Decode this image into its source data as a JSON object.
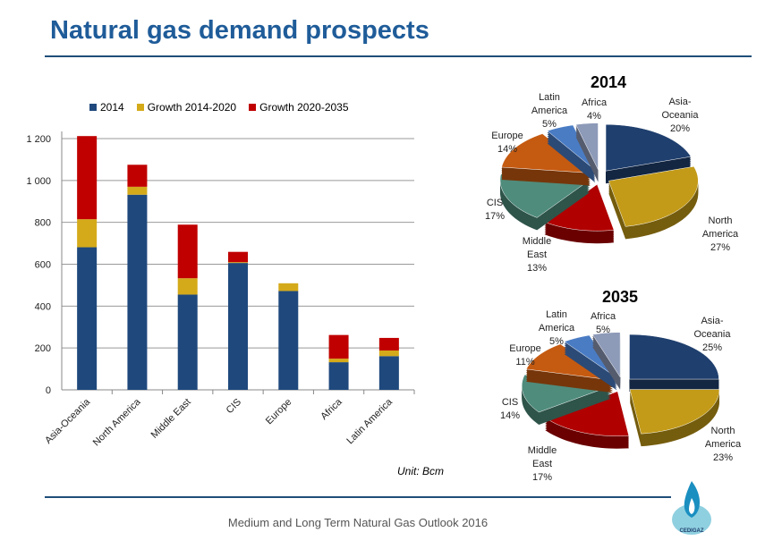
{
  "title": "Natural gas demand prospects",
  "footer": "Medium and Long Term Natural Gas Outlook 2016",
  "logo_text": "CEDIGAZ",
  "chart_data": [
    {
      "type": "bar",
      "stacked": true,
      "categories": [
        "Asia-Oceania",
        "North America",
        "Middle East",
        "CIS",
        "Europe",
        "Africa",
        "Latin America"
      ],
      "series": [
        {
          "name": "2014",
          "color": "#1f497d",
          "values": [
            681,
            932,
            455,
            606,
            472,
            132,
            161
          ]
        },
        {
          "name": "Growth 2014-2020",
          "color": "#d4aa1a",
          "values": [
            134,
            38,
            78,
            4,
            37,
            17,
            27
          ]
        },
        {
          "name": "Growth 2020-2035",
          "color": "#c00000",
          "values": [
            397,
            105,
            256,
            49,
            0,
            113,
            60
          ]
        }
      ],
      "ylim": [
        0,
        1200
      ],
      "yticks": [
        "0",
        "200",
        "400",
        "600",
        "800",
        "1 000",
        "1 200"
      ],
      "grid": true,
      "legend": "top",
      "unit": "Unit: Bcm"
    },
    {
      "type": "pie",
      "title": "2014",
      "slices": [
        {
          "label": "Asia-Oceania",
          "pct": "20%",
          "value": 20,
          "color": "#1f3f6e"
        },
        {
          "label": "North America",
          "pct": "27%",
          "value": 27,
          "color": "#c39b18"
        },
        {
          "label": "Middle East",
          "pct": "13%",
          "value": 13,
          "color": "#b00000"
        },
        {
          "label": "CIS",
          "pct": "17%",
          "value": 17,
          "color": "#4f8c7c"
        },
        {
          "label": "Europe",
          "pct": "14%",
          "value": 14,
          "color": "#c55a11"
        },
        {
          "label": "Latin America",
          "pct": "5%",
          "value": 5,
          "color": "#4a7cc4"
        },
        {
          "label": "Africa",
          "pct": "4%",
          "value": 4,
          "color": "#8d9ab8"
        }
      ]
    },
    {
      "type": "pie",
      "title": "2035",
      "slices": [
        {
          "label": "Asia-Oceania",
          "pct": "25%",
          "value": 25,
          "color": "#1f3f6e"
        },
        {
          "label": "North America",
          "pct": "23%",
          "value": 23,
          "color": "#c39b18"
        },
        {
          "label": "Middle East",
          "pct": "17%",
          "value": 17,
          "color": "#b00000"
        },
        {
          "label": "CIS",
          "pct": "14%",
          "value": 14,
          "color": "#4f8c7c"
        },
        {
          "label": "Europe",
          "pct": "11%",
          "value": 11,
          "color": "#c55a11"
        },
        {
          "label": "Latin America",
          "pct": "5%",
          "value": 5,
          "color": "#4a7cc4"
        },
        {
          "label": "Africa",
          "pct": "5%",
          "value": 5,
          "color": "#8d9ab8"
        }
      ]
    }
  ]
}
